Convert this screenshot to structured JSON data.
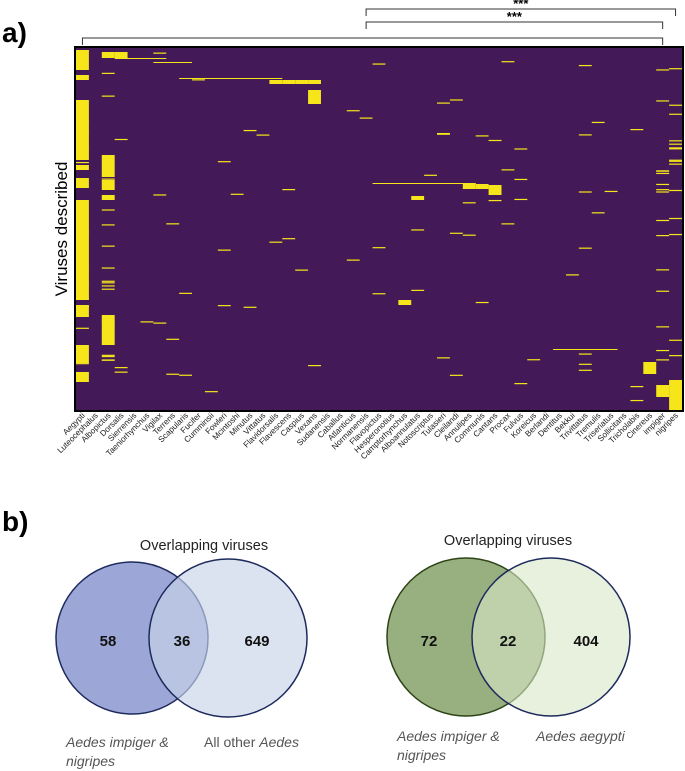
{
  "panel_a_label": "a)",
  "panel_b_label": "b)",
  "chart_data": [
    {
      "type": "heatmap",
      "title": "",
      "ylabel": "Viruses described",
      "xlabel": "",
      "categories": [
        "Aegypti",
        "Luteocephalus",
        "Albopictus",
        "Dorsalis",
        "Sierrensis",
        "Taeniorhynchus",
        "Vigilax",
        "Terrens",
        "Scapularis",
        "Fucifer",
        "Cumminsii",
        "Fowleri",
        "Mcintoshi",
        "Minutus",
        "Vittatus",
        "Flavidorsalis",
        "Flavescens",
        "Caspius",
        "Vexans",
        "Sudanensis",
        "Caballus",
        "Atlanticus",
        "Normanensis",
        "Flavopictus",
        "Hesperonotius",
        "Camptorhynchus",
        "Alboannulatus",
        "Notoscriptus",
        "Tulasieri",
        "Cleilandi",
        "Annulipes",
        "Communis",
        "Cantans",
        "Procax",
        "Fulvus",
        "Koreicus",
        "Berlandi",
        "Dentitus",
        "Bekkui",
        "Trivittatus",
        "Tremulis",
        "Triseriatus",
        "Sollicitans",
        "Tricholabis",
        "Cinereus",
        "impiger",
        "nigripes"
      ],
      "value_encoding": "yellow = virus described in species, purple = not described",
      "colors": {
        "absent": "#431a57",
        "present": "#f5e51a"
      },
      "significance": [
        {
          "from": "Aegypti",
          "to": "impiger",
          "label": ""
        },
        {
          "from": "Normanensis",
          "to": "nigripes",
          "label": "***"
        },
        {
          "from": "Normanensis",
          "to": "impiger",
          "label": "***"
        }
      ]
    },
    {
      "type": "venn",
      "title": "Overlapping viruses",
      "sets": [
        {
          "name": "Aedes impiger & nigripes",
          "only": 58,
          "color": "#8c98d0"
        },
        {
          "name": "All other Aedes",
          "only": 649,
          "color": "#d5deef"
        }
      ],
      "overlap": 36
    },
    {
      "type": "venn",
      "title": "Overlapping viruses",
      "sets": [
        {
          "name": "Aedes impiger & nigripes",
          "only": 72,
          "color": "#8aa571"
        },
        {
          "name": "Aedes aegypti",
          "only": 404,
          "color": "#dfebd0"
        }
      ],
      "overlap": 22
    }
  ],
  "venn1": {
    "title": "Overlapping viruses",
    "left": "58",
    "mid": "36",
    "right": "649",
    "left_label_1": "Aedes impiger &",
    "left_label_2": "nigripes",
    "right_label_pre": "All other",
    "right_label_it": "Aedes"
  },
  "venn2": {
    "title": "Overlapping viruses",
    "left": "72",
    "mid": "22",
    "right": "404",
    "left_label_1": "Aedes impiger &",
    "left_label_2": "nigripes",
    "right_label": "Aedes aegypti"
  }
}
